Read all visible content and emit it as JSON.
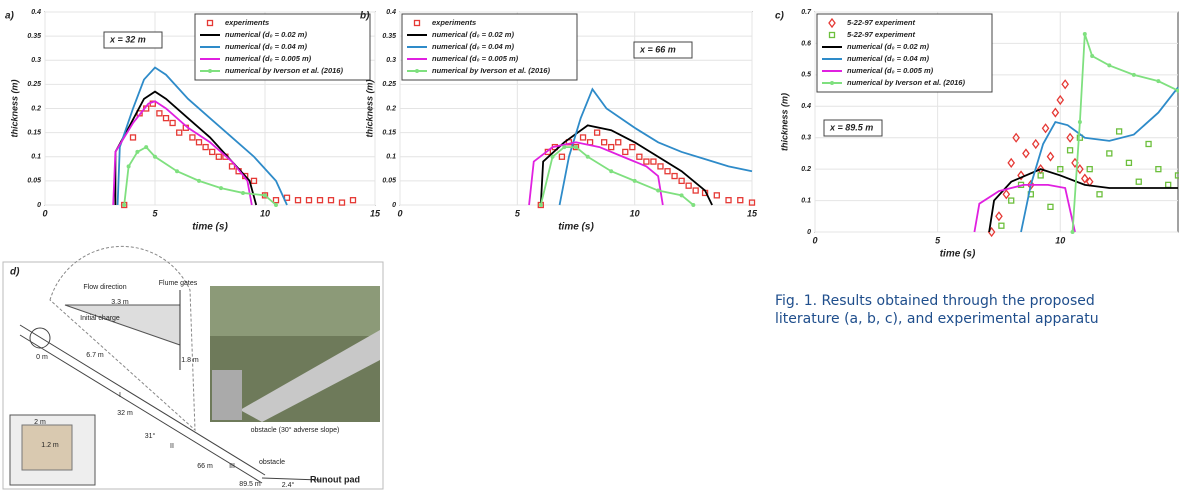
{
  "chart_data": [
    {
      "type": "line",
      "panel": "a)",
      "annotation": "x = 32 m",
      "xlabel": "time (s)",
      "ylabel": "thickness (m)",
      "xlim": [
        0,
        15
      ],
      "xticks": [
        0,
        5,
        10,
        15
      ],
      "ylim": [
        0,
        0.4
      ],
      "yticks": [
        0,
        0.05,
        0.1,
        0.15,
        0.2,
        0.25,
        0.3,
        0.35,
        0.4
      ],
      "legend": "upper right",
      "series": [
        {
          "name": "experiments",
          "color": "#e53935",
          "style": "markers",
          "marker": "square",
          "x": [
            3.6,
            4,
            4.3,
            4.6,
            4.9,
            5.2,
            5.5,
            5.8,
            6.1,
            6.4,
            6.7,
            7,
            7.3,
            7.6,
            7.9,
            8.2,
            8.5,
            8.8,
            9.1,
            9.5,
            10,
            10.5,
            11,
            11.5,
            12,
            12.5,
            13,
            13.5,
            14
          ],
          "values": [
            0,
            0.14,
            0.19,
            0.2,
            0.21,
            0.19,
            0.18,
            0.17,
            0.15,
            0.16,
            0.14,
            0.13,
            0.12,
            0.11,
            0.1,
            0.1,
            0.08,
            0.07,
            0.06,
            0.05,
            0.02,
            0.01,
            0.015,
            0.01,
            0.01,
            0.01,
            0.01,
            0.005,
            0.01
          ]
        },
        {
          "name": "numerical (d₀ = 0.02 m)",
          "color": "#000000",
          "style": "line",
          "x": [
            3.2,
            3.2,
            3.8,
            4.5,
            5,
            5.5,
            6.5,
            7.5,
            8.5,
            9.3,
            9.6
          ],
          "values": [
            0,
            0.11,
            0.16,
            0.22,
            0.235,
            0.22,
            0.18,
            0.14,
            0.09,
            0.05,
            0
          ]
        },
        {
          "name": "numerical (d₀ = 0.04 m)",
          "color": "#2e8bc9",
          "style": "line",
          "x": [
            3.3,
            3.4,
            4,
            4.5,
            5,
            5.5,
            6.5,
            7.5,
            8.5,
            9.5,
            10.5,
            11
          ],
          "values": [
            0,
            0.12,
            0.2,
            0.26,
            0.285,
            0.27,
            0.22,
            0.18,
            0.14,
            0.1,
            0.05,
            0
          ]
        },
        {
          "name": "numerical (d₀ = 0.005 m)",
          "color": "#e020e0",
          "style": "line",
          "x": [
            3.1,
            3.2,
            4,
            4.7,
            5,
            5.5,
            6.5,
            7.5,
            8.5,
            9.2,
            9.4
          ],
          "values": [
            0,
            0.11,
            0.17,
            0.21,
            0.215,
            0.2,
            0.16,
            0.13,
            0.09,
            0.05,
            0
          ]
        },
        {
          "name": "numerical by Iverson et al. (2016)",
          "color": "#7fe07f",
          "style": "line+markers",
          "x": [
            3.6,
            3.8,
            4.2,
            4.6,
            5,
            6,
            7,
            8,
            9,
            10,
            10.5
          ],
          "values": [
            0,
            0.08,
            0.11,
            0.12,
            0.1,
            0.07,
            0.05,
            0.035,
            0.025,
            0.02,
            0
          ]
        }
      ]
    },
    {
      "type": "line",
      "panel": "b)",
      "annotation": "x = 66 m",
      "xlabel": "time (s)",
      "ylabel": "thickness (m)",
      "xlim": [
        0,
        15
      ],
      "xticks": [
        0,
        5,
        10,
        15
      ],
      "ylim": [
        0,
        0.4
      ],
      "yticks": [
        0,
        0.05,
        0.1,
        0.15,
        0.2,
        0.25,
        0.3,
        0.35,
        0.4
      ],
      "legend": "upper left",
      "series": [
        {
          "name": "experiments",
          "color": "#e53935",
          "style": "markers",
          "marker": "square",
          "x": [
            6,
            6.3,
            6.6,
            6.9,
            7.2,
            7.5,
            7.8,
            8.1,
            8.4,
            8.7,
            9,
            9.3,
            9.6,
            9.9,
            10.2,
            10.5,
            10.8,
            11.1,
            11.4,
            11.7,
            12,
            12.3,
            12.6,
            13,
            13.5,
            14,
            14.5,
            15
          ],
          "values": [
            0,
            0.11,
            0.12,
            0.1,
            0.13,
            0.12,
            0.14,
            0.13,
            0.15,
            0.13,
            0.12,
            0.13,
            0.11,
            0.12,
            0.1,
            0.09,
            0.09,
            0.08,
            0.07,
            0.06,
            0.05,
            0.04,
            0.03,
            0.025,
            0.02,
            0.01,
            0.01,
            0.005
          ]
        },
        {
          "name": "numerical (d₀ = 0.02 m)",
          "color": "#000000",
          "style": "line",
          "x": [
            6,
            6.1,
            7,
            8,
            9,
            10,
            11,
            12,
            13,
            13.3
          ],
          "values": [
            0,
            0.09,
            0.13,
            0.165,
            0.155,
            0.13,
            0.1,
            0.07,
            0.03,
            0
          ]
        },
        {
          "name": "numerical (d₀ = 0.04 m)",
          "color": "#2e8bc9",
          "style": "line",
          "x": [
            6.8,
            7.2,
            7.7,
            8.2,
            8.8,
            10,
            11,
            12,
            13,
            14,
            15
          ],
          "values": [
            0,
            0.1,
            0.18,
            0.24,
            0.2,
            0.16,
            0.13,
            0.11,
            0.095,
            0.08,
            0.07
          ]
        },
        {
          "name": "numerical (d₀ = 0.005 m)",
          "color": "#e020e0",
          "style": "line",
          "x": [
            5.5,
            5.7,
            6.5,
            7.5,
            8.5,
            9.5,
            10.5,
            11,
            11.2
          ],
          "values": [
            0,
            0.09,
            0.12,
            0.13,
            0.12,
            0.1,
            0.08,
            0.06,
            0
          ]
        },
        {
          "name": "numerical by Iverson et al. (2016)",
          "color": "#7fe07f",
          "style": "line+markers",
          "x": [
            6,
            6.5,
            7,
            7.5,
            8,
            9,
            10,
            11,
            12,
            12.5
          ],
          "values": [
            0,
            0.1,
            0.12,
            0.12,
            0.1,
            0.07,
            0.05,
            0.03,
            0.02,
            0
          ]
        }
      ]
    },
    {
      "type": "line",
      "panel": "c)",
      "annotation": "x = 89.5 m",
      "xlabel": "time (s)",
      "ylabel": "thickness (m)",
      "xlim": [
        0,
        14.8
      ],
      "xticks": [
        0,
        5,
        10
      ],
      "ylim": [
        0,
        0.7
      ],
      "yticks": [
        0,
        0.1,
        0.2,
        0.3,
        0.4,
        0.5,
        0.6,
        0.7
      ],
      "legend": "upper left",
      "series": [
        {
          "name": "5-22-97 experiment",
          "color": "#e53935",
          "style": "markers",
          "marker": "diamond",
          "x": [
            7.2,
            7.5,
            7.8,
            8,
            8.2,
            8.4,
            8.6,
            8.8,
            9,
            9.2,
            9.4,
            9.6,
            9.8,
            10,
            10.2,
            10.4,
            10.6,
            10.8,
            11,
            11.2
          ],
          "values": [
            0,
            0.05,
            0.12,
            0.22,
            0.3,
            0.18,
            0.25,
            0.15,
            0.28,
            0.2,
            0.33,
            0.24,
            0.38,
            0.42,
            0.47,
            0.3,
            0.22,
            0.2,
            0.17,
            0.16
          ]
        },
        {
          "name": "5-22-97 experiment",
          "color": "#6cbf3c",
          "style": "markers",
          "marker": "square",
          "x": [
            7.6,
            8,
            8.4,
            8.8,
            9.2,
            9.6,
            10,
            10.4,
            10.8,
            11.2,
            11.6,
            12,
            12.4,
            12.8,
            13.2,
            13.6,
            14,
            14.4,
            14.8
          ],
          "values": [
            0.02,
            0.1,
            0.15,
            0.12,
            0.18,
            0.08,
            0.2,
            0.26,
            0.3,
            0.2,
            0.12,
            0.25,
            0.32,
            0.22,
            0.16,
            0.28,
            0.2,
            0.15,
            0.18
          ]
        },
        {
          "name": "numerical (d₀ = 0.02 m)",
          "color": "#000000",
          "style": "line",
          "x": [
            7.1,
            7.3,
            8,
            9.2,
            10,
            11,
            12,
            13,
            14.8
          ],
          "values": [
            0,
            0.1,
            0.16,
            0.2,
            0.18,
            0.15,
            0.14,
            0.14,
            0.14
          ]
        },
        {
          "name": "numerical (d₀ = 0.04 m)",
          "color": "#2e8bc9",
          "style": "line",
          "x": [
            8.4,
            8.8,
            9.3,
            9.8,
            10.3,
            11,
            12,
            13,
            14,
            14.8
          ],
          "values": [
            0,
            0.15,
            0.28,
            0.35,
            0.34,
            0.3,
            0.29,
            0.31,
            0.38,
            0.46
          ]
        },
        {
          "name": "numerical (d₀ = 0.005 m)",
          "color": "#e020e0",
          "style": "line",
          "x": [
            6.5,
            6.7,
            7.5,
            8.5,
            9.5,
            10.2,
            10.6
          ],
          "values": [
            0,
            0.09,
            0.13,
            0.15,
            0.15,
            0.14,
            0
          ]
        },
        {
          "name": "numerical by Iverson et al. (2016)",
          "color": "#7fe07f",
          "style": "line+markers",
          "x": [
            10.5,
            10.8,
            11,
            11.3,
            12,
            13,
            14,
            14.8
          ],
          "values": [
            0,
            0.35,
            0.63,
            0.56,
            0.53,
            0.5,
            0.48,
            0.45
          ]
        }
      ]
    }
  ],
  "diagram": {
    "panel": "d)",
    "labels": [
      "Flow direction",
      "3.3 m",
      "Flume gates",
      "Initial charge",
      "6.7 m",
      "1.8 m",
      "0 m",
      "I",
      "32 m",
      "31°",
      "II",
      "66 m",
      "III",
      "obstacle",
      "89.5 m",
      "2.4°",
      "Runout pad",
      "2 m",
      "1.2 m",
      "obstacle (30° adverse slope)"
    ]
  },
  "caption": [
    "Fig. 1. Results obtained through the proposed",
    "literature (a, b, c), and experimental apparatu"
  ]
}
